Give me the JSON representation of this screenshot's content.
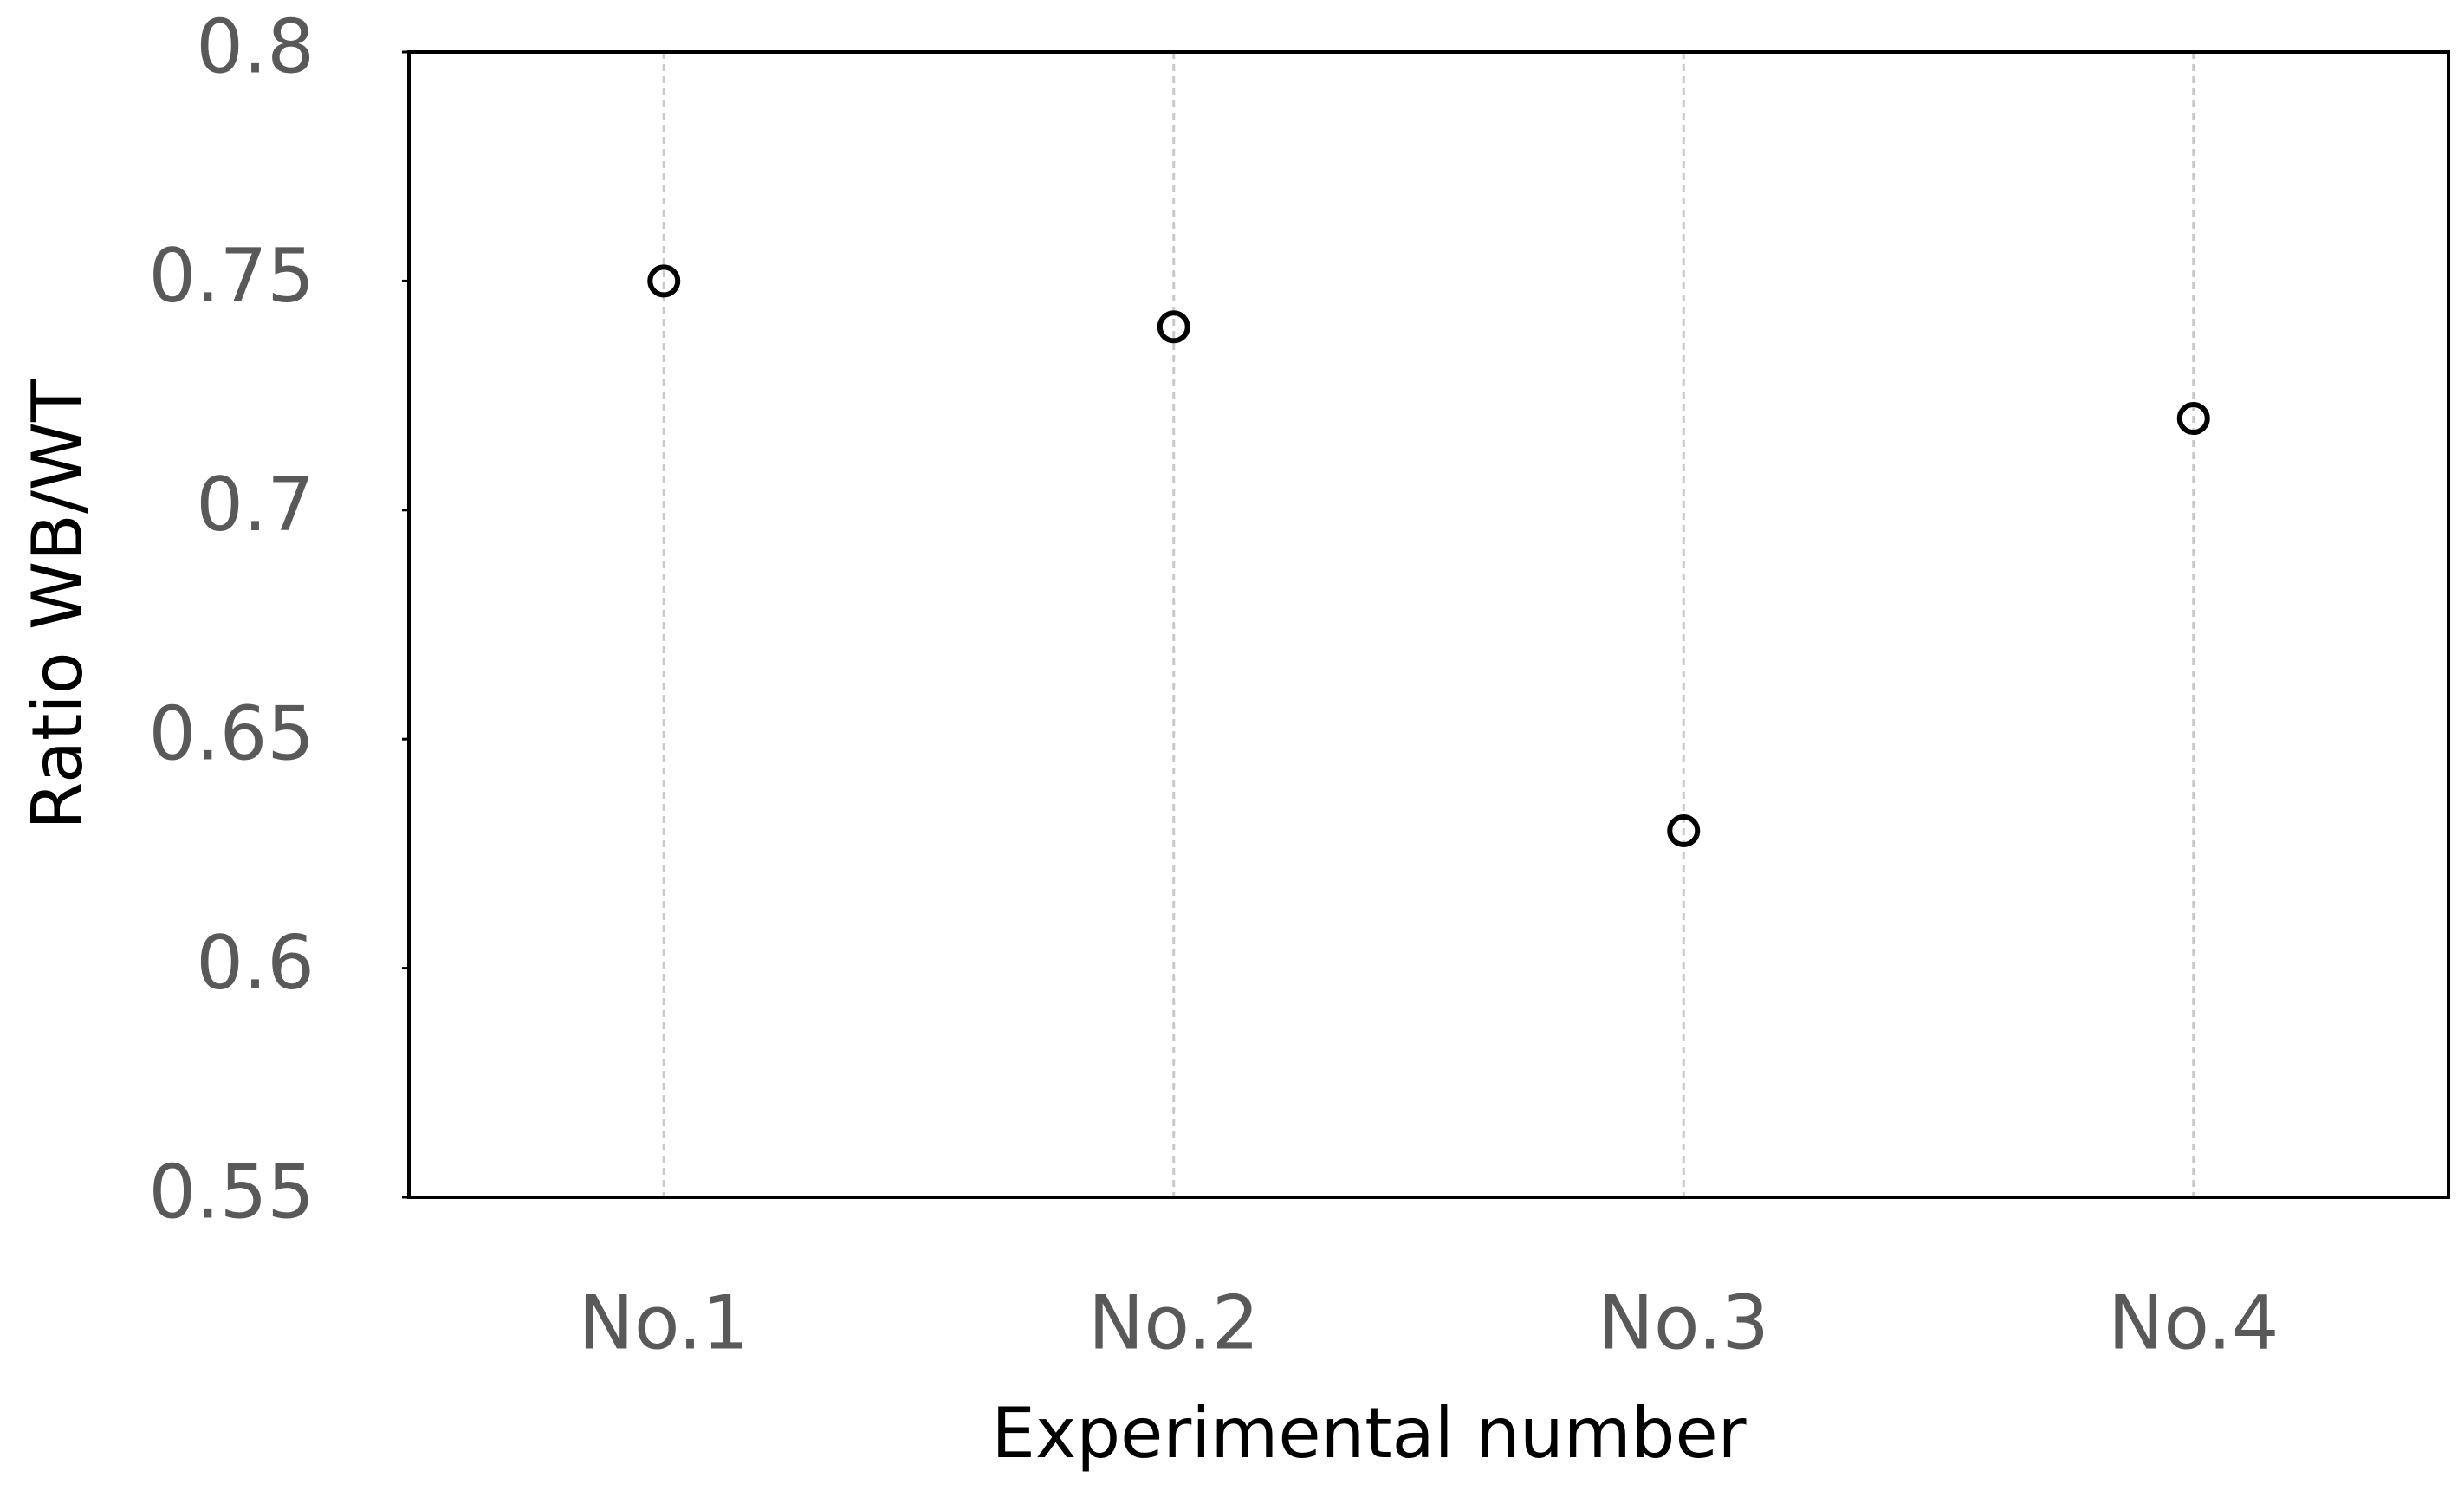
{
  "chart_data": {
    "type": "scatter",
    "x_label": "Experimental number",
    "y_label": "Ratio WB/WT",
    "categories": [
      "No.1",
      "No.2",
      "No.3",
      "No.4"
    ],
    "values": [
      0.75,
      0.74,
      0.63,
      0.72
    ],
    "color": "#000000",
    "ylim": [
      0.55,
      0.8
    ],
    "yticks": [
      0.55,
      0.6,
      0.65,
      0.7,
      0.75,
      0.8
    ],
    "grid": true
  }
}
